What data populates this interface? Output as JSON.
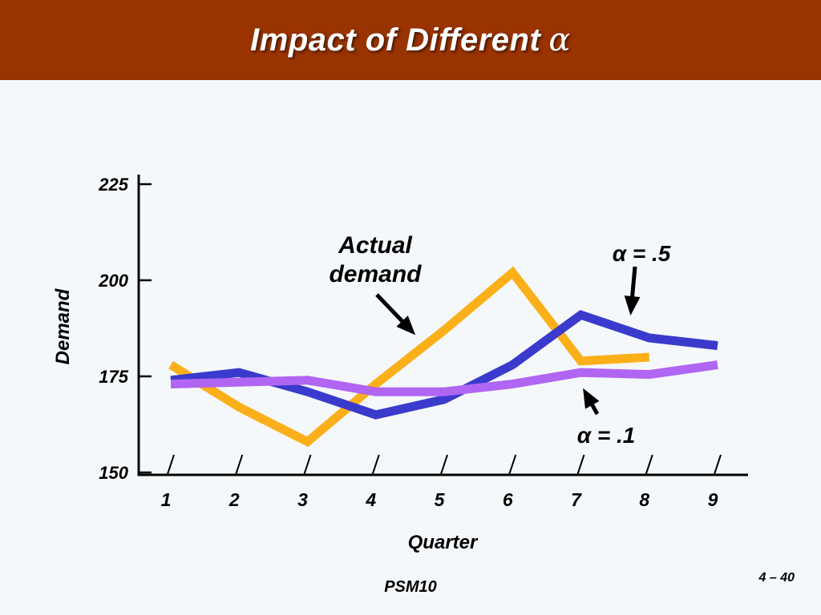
{
  "slide": {
    "title": "Impact of Different",
    "title_symbol": "α",
    "footer_center": "PSM10",
    "footer_right": "4 – 40"
  },
  "colors": {
    "title_bar": "#993300",
    "actual": "#fbb01a",
    "alpha_05": "#3a3acc",
    "alpha_01": "#b066f2",
    "background": "#f5f8fb"
  },
  "chart_data": {
    "type": "line",
    "title": "",
    "xlabel": "Quarter",
    "ylabel": "Demand",
    "x": [
      1,
      2,
      3,
      4,
      5,
      6,
      7,
      8,
      9
    ],
    "ylim": [
      150,
      225
    ],
    "yticks": [
      150,
      175,
      200,
      225
    ],
    "grid": false,
    "series": [
      {
        "key": "actual",
        "values": [
          178,
          167,
          158,
          173,
          187,
          202,
          179,
          180,
          null
        ]
      },
      {
        "key": "alpha_05",
        "values": [
          174,
          176,
          171,
          165,
          169,
          178,
          191,
          185,
          183
        ]
      },
      {
        "key": "alpha_01",
        "values": [
          173,
          173.5,
          174,
          171,
          171,
          173,
          176,
          175.5,
          178
        ]
      }
    ],
    "annotations": [
      {
        "label": "Actual",
        "label2": "demand"
      },
      {
        "label": "α = .5"
      },
      {
        "label": "α = .1"
      }
    ]
  }
}
